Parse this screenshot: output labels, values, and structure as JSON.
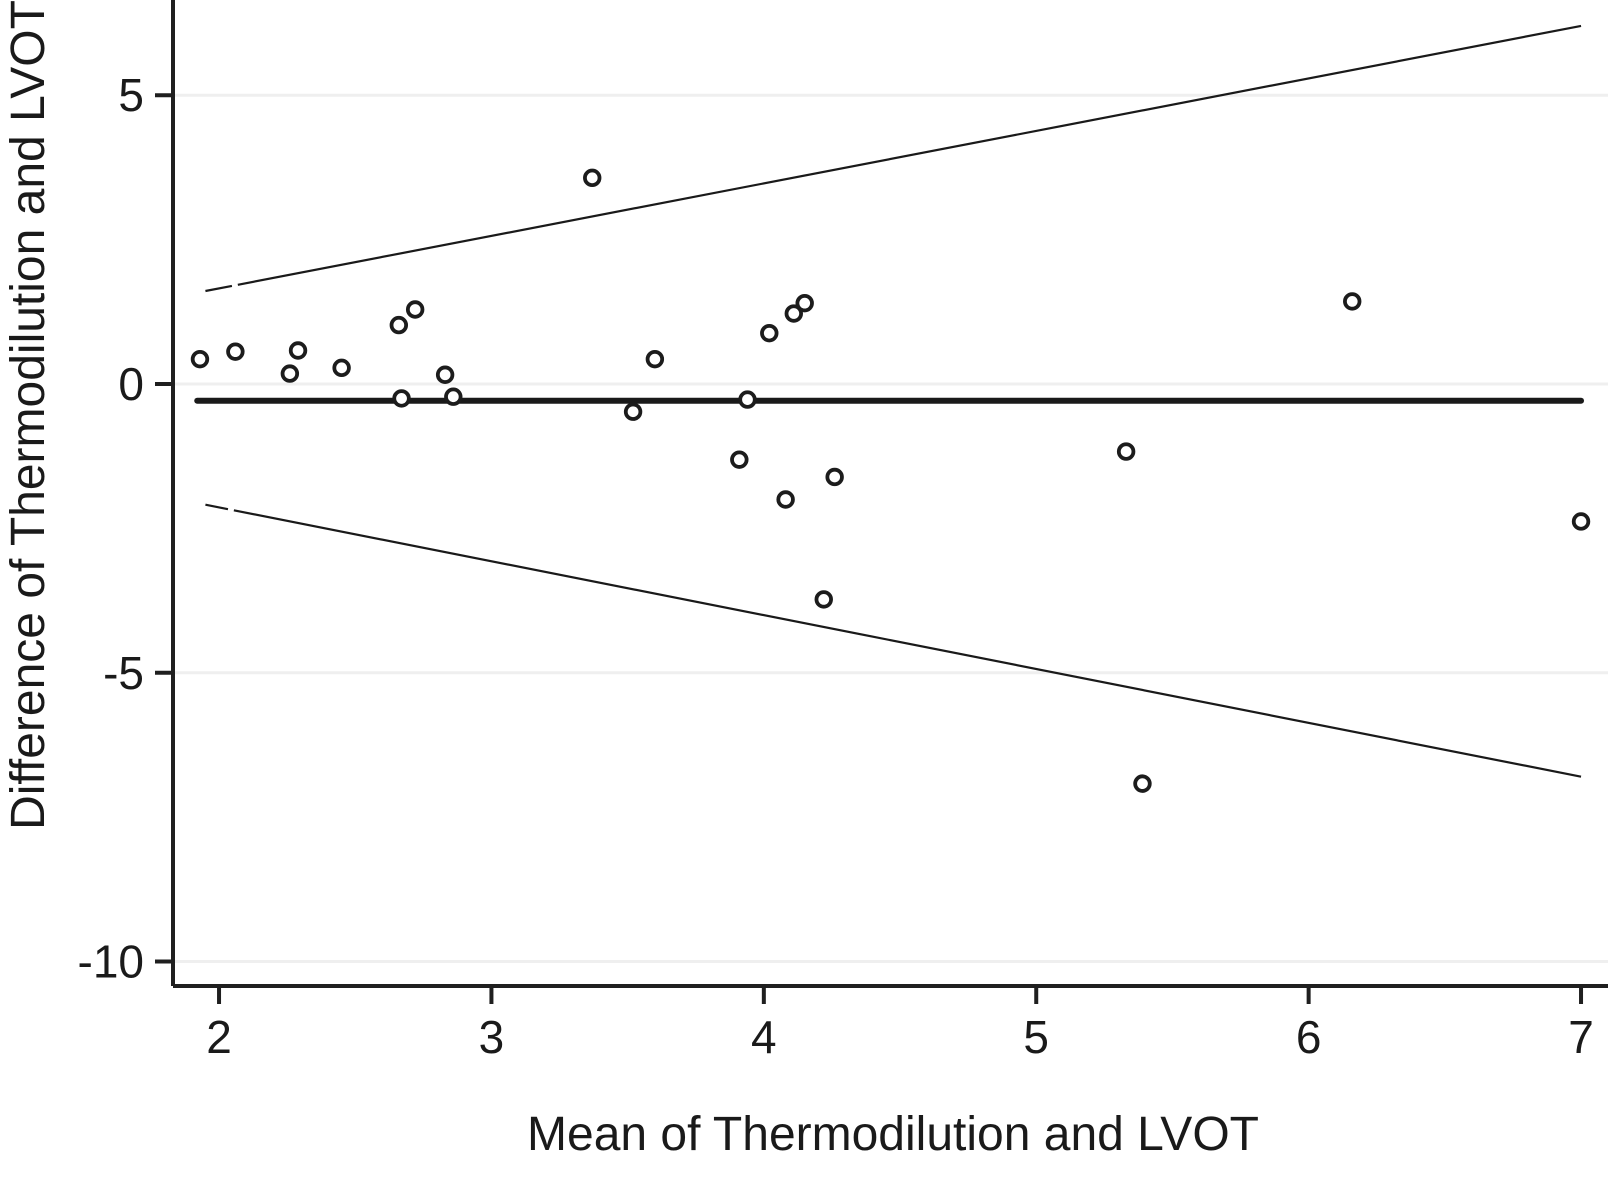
{
  "figure": {
    "background": "#ffffff",
    "axis_color": "#1f1f1f",
    "grid_color": "#efefef",
    "marker_stroke_color": "#1c1c1c",
    "marker_fill_color": "#ffffff",
    "line_color": "#1a1a1a"
  },
  "chart_data": {
    "type": "scatter",
    "title": "",
    "xlabel": "Mean of Thermodilution and LVOT",
    "ylabel": "Difference of Thermodilution and LVOT",
    "x_ticks": [
      2,
      3,
      4,
      5,
      6,
      7
    ],
    "y_ticks": [
      5,
      0,
      -5,
      -10
    ],
    "xlim": [
      1.831,
      7.099
    ],
    "ylim": [
      -10.424,
      6.649
    ],
    "grid": "horizontal-light",
    "legend": "none",
    "points": [
      [
        1.93,
        0.43
      ],
      [
        2.06,
        0.56
      ],
      [
        2.26,
        0.18
      ],
      [
        2.29,
        0.58
      ],
      [
        2.45,
        0.28
      ],
      [
        2.66,
        1.02
      ],
      [
        2.67,
        -0.25
      ],
      [
        2.72,
        1.29
      ],
      [
        2.83,
        0.16
      ],
      [
        2.86,
        -0.22
      ],
      [
        3.37,
        3.57
      ],
      [
        3.52,
        -0.48
      ],
      [
        3.6,
        0.43
      ],
      [
        3.91,
        -1.31
      ],
      [
        3.94,
        -0.27
      ],
      [
        4.02,
        0.88
      ],
      [
        4.08,
        -2.0
      ],
      [
        4.11,
        1.22
      ],
      [
        4.15,
        1.4
      ],
      [
        4.22,
        -3.73
      ],
      [
        4.26,
        -1.61
      ],
      [
        5.33,
        -1.17
      ],
      [
        5.39,
        -6.92
      ],
      [
        6.16,
        1.43
      ],
      [
        7.0,
        -2.38
      ]
    ],
    "mean_line": {
      "x1": 1.92,
      "y1": -0.29,
      "x2": 7.0,
      "y2": -0.29
    },
    "upper_limit_line": {
      "x1": 1.95,
      "y1": 1.61,
      "x2": 7.0,
      "y2": 6.2
    },
    "lower_limit_line": {
      "x1": 1.95,
      "y1": -2.09,
      "x2": 7.0,
      "y2": -6.8
    }
  }
}
